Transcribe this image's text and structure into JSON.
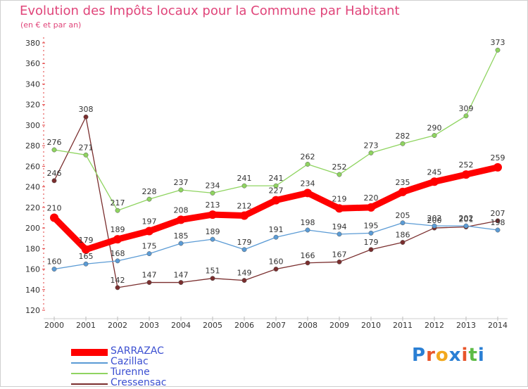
{
  "title": "Evolution des Impôts locaux pour la Commune par Habitant",
  "subtitle": "(en € et par an)",
  "logo": "Proxiti",
  "chart_data": {
    "type": "line",
    "title": "Evolution des Impôts locaux pour la Commune par Habitant",
    "subtitle": "(en € et par an)",
    "x": [
      "2000",
      "2001",
      "2002",
      "2003",
      "2004",
      "2005",
      "2006",
      "2007",
      "2008",
      "2009",
      "2010",
      "2011",
      "2012",
      "2013",
      "2014"
    ],
    "ylim": [
      120,
      380
    ],
    "yticks": [
      120,
      140,
      160,
      180,
      200,
      220,
      240,
      260,
      280,
      300,
      320,
      340,
      360,
      380
    ],
    "grid": false,
    "legend_position": "bottom-left",
    "series": [
      {
        "name": "SARRAZAC",
        "color": "#ff0000",
        "values": [
          210,
          179,
          189,
          197,
          208,
          213,
          212,
          227,
          234,
          219,
          220,
          235,
          245,
          252,
          259
        ]
      },
      {
        "name": "Cazillac",
        "color": "#5b9bd5",
        "values": [
          160,
          165,
          168,
          175,
          185,
          189,
          179,
          191,
          198,
          194,
          195,
          205,
          202,
          202,
          198
        ]
      },
      {
        "name": "Turenne",
        "color": "#8fd460",
        "values": [
          276,
          271,
          217,
          228,
          237,
          234,
          241,
          241,
          262,
          252,
          273,
          282,
          290,
          309,
          373
        ]
      },
      {
        "name": "Cressensac",
        "color": "#7a2e2e",
        "values": [
          246,
          308,
          142,
          147,
          147,
          151,
          149,
          160,
          166,
          167,
          179,
          186,
          200,
          201,
          207
        ]
      }
    ]
  }
}
